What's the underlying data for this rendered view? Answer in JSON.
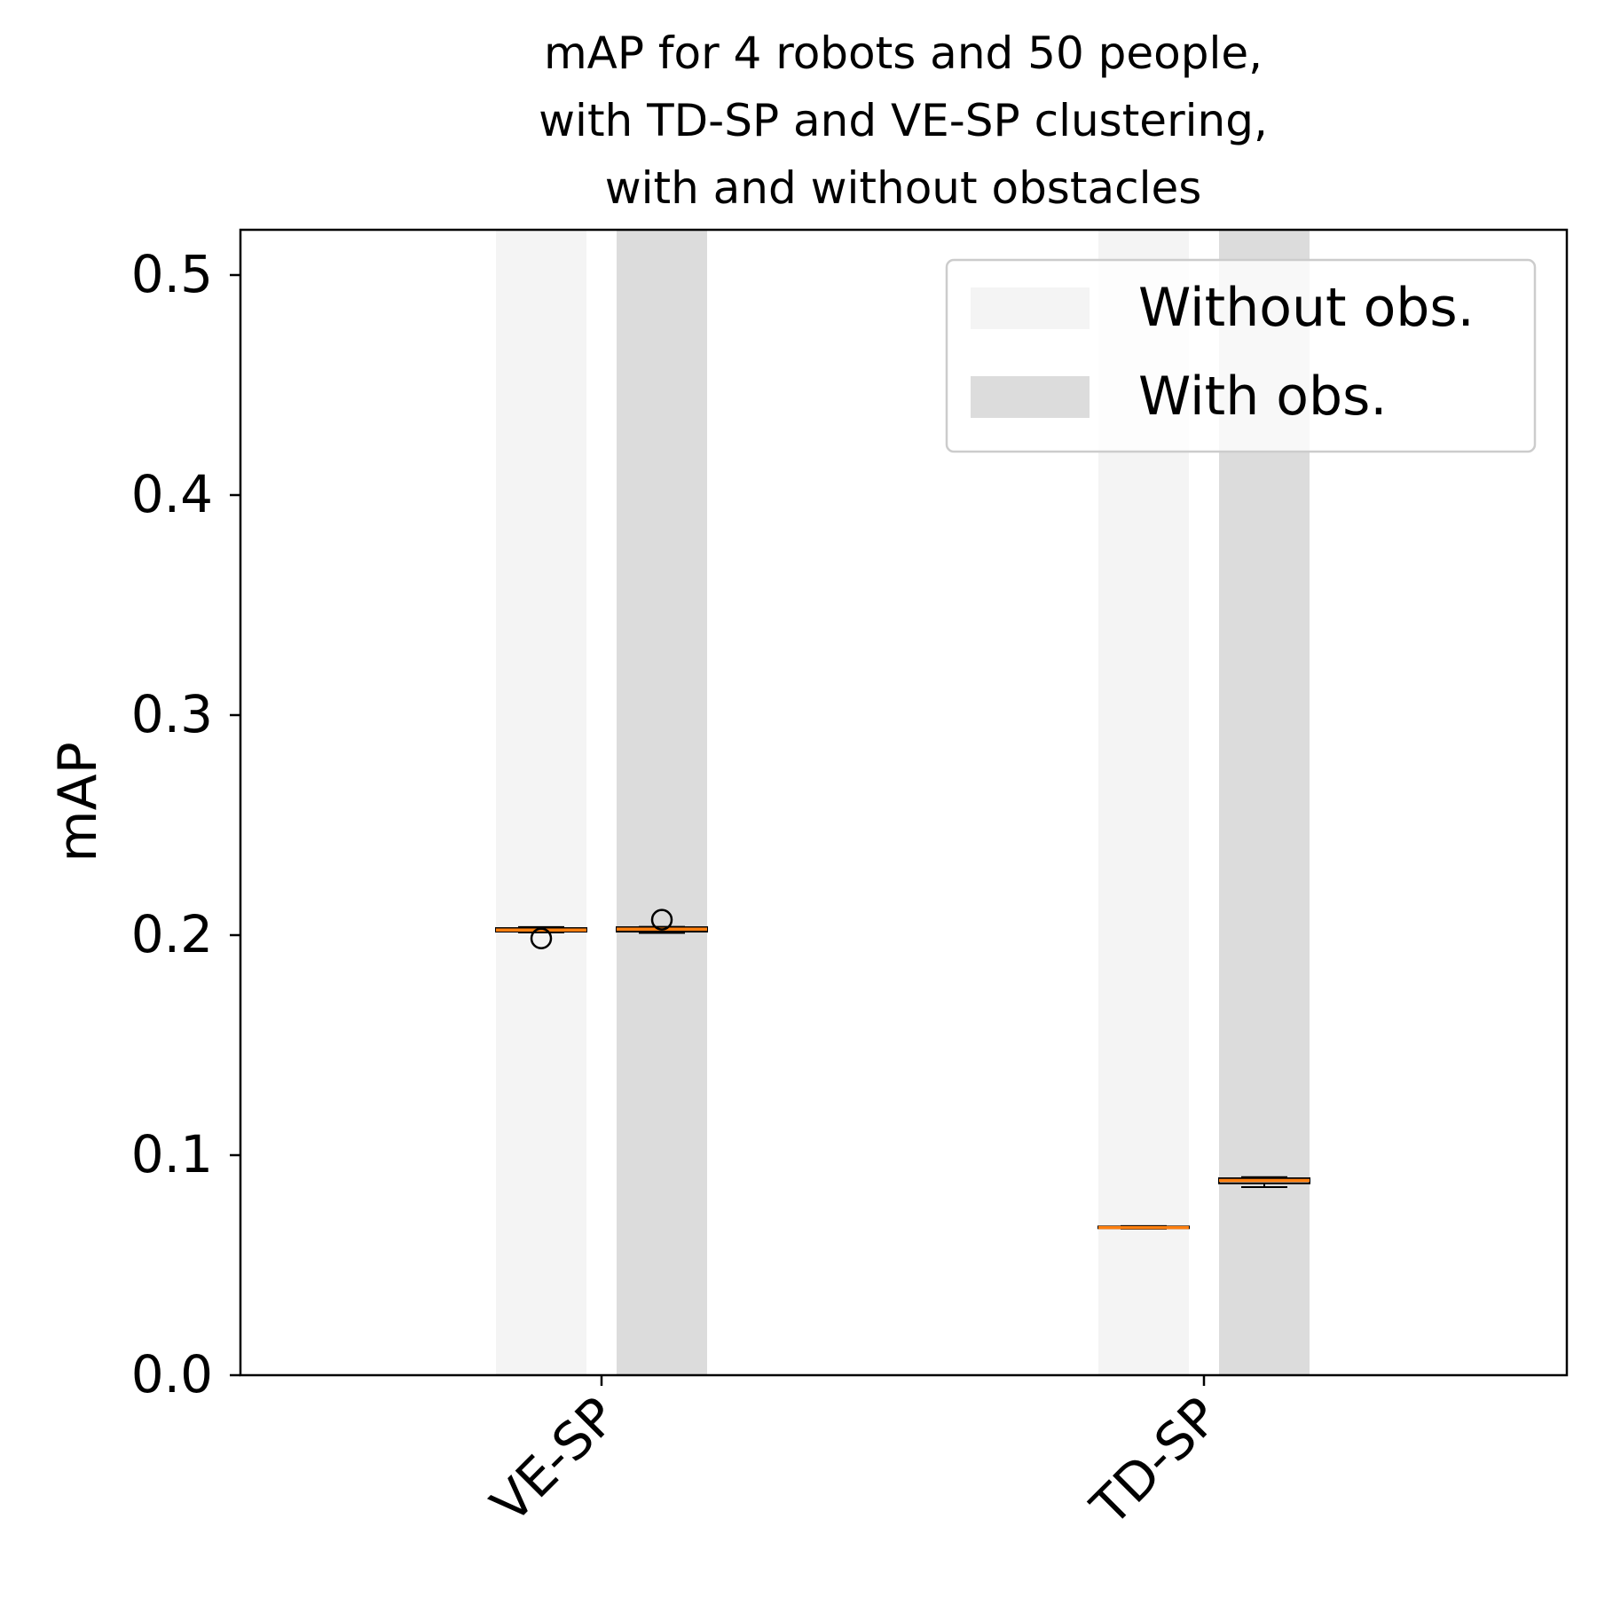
{
  "chart_data": {
    "type": "box",
    "title_lines": [
      "mAP for 4 robots and 50 people,",
      "with TD-SP and VE-SP clustering,",
      "with and without obstacles"
    ],
    "xlabel": "",
    "ylabel": "mAP",
    "ylim": [
      0,
      0.52
    ],
    "yticks": [
      "0.0",
      "0.1",
      "0.2",
      "0.3",
      "0.4",
      "0.5"
    ],
    "categories": [
      "VE-SP",
      "TD-SP"
    ],
    "legend": {
      "placement": "top-right",
      "entries": [
        {
          "label": "Without obs.",
          "color": "#f4f4f4"
        },
        {
          "label": "With obs.",
          "color": "#dcdcdc"
        }
      ]
    },
    "series": [
      {
        "name": "Without obs.",
        "color": "#f4f4f4",
        "boxes": [
          {
            "category": "VE-SP",
            "whislo": 0.2012,
            "q1": 0.2016,
            "med": 0.2023,
            "q3": 0.2032,
            "whishi": 0.2037,
            "fliers": [
              0.1985
            ]
          },
          {
            "category": "TD-SP",
            "whislo": 0.0666,
            "q1": 0.0668,
            "med": 0.0671,
            "q3": 0.0676,
            "whishi": 0.0678,
            "fliers": []
          }
        ]
      },
      {
        "name": "With obs.",
        "color": "#dcdcdc",
        "boxes": [
          {
            "category": "VE-SP",
            "whislo": 0.201,
            "q1": 0.2016,
            "med": 0.2027,
            "q3": 0.2036,
            "whishi": 0.2038,
            "fliers": [
              0.207
            ]
          },
          {
            "category": "TD-SP",
            "whislo": 0.0855,
            "q1": 0.0872,
            "med": 0.0885,
            "q3": 0.0895,
            "whishi": 0.09,
            "fliers": []
          }
        ]
      }
    ],
    "colors": {
      "median": "#ff7f0e",
      "box_edge": "#000000",
      "axes": "#000000"
    }
  }
}
